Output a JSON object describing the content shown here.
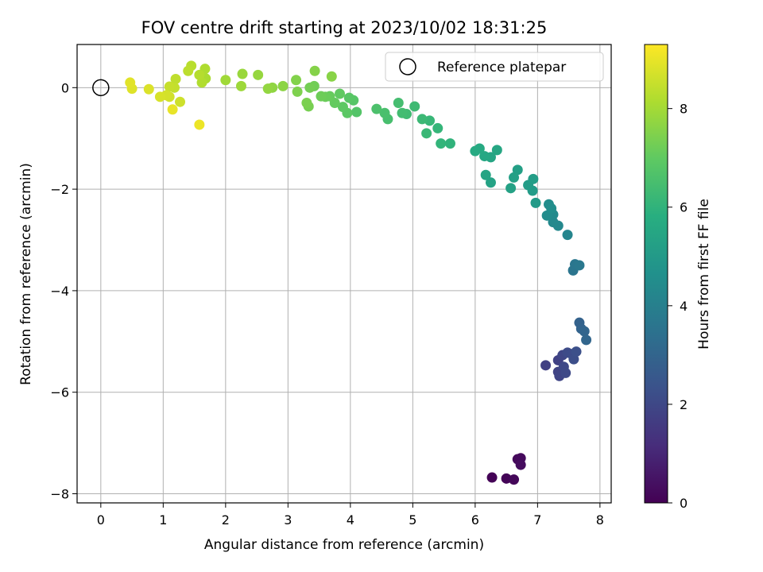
{
  "chart_data": {
    "type": "scatter",
    "title": "FOV centre drift starting at 2023/10/02 18:31:25",
    "xlabel": "Angular distance from reference (arcmin)",
    "ylabel": "Rotation from reference (arcmin)",
    "xlim": [
      -0.38,
      8.18
    ],
    "ylim": [
      -8.18,
      0.85
    ],
    "xticks": [
      0,
      1,
      2,
      3,
      4,
      5,
      6,
      7,
      8
    ],
    "xtick_labels": [
      "0",
      "1",
      "2",
      "3",
      "4",
      "5",
      "6",
      "7",
      "8"
    ],
    "yticks": [
      0,
      -2,
      -4,
      -6,
      -8
    ],
    "ytick_labels": [
      "0",
      "−2",
      "−4",
      "−6",
      "−8"
    ],
    "grid": true,
    "colormap": "viridis",
    "colorbar": {
      "label": "Hours from first FF file",
      "range": [
        0,
        9.3
      ],
      "ticks": [
        0,
        2,
        4,
        6,
        8
      ],
      "tick_labels": [
        "0",
        "2",
        "4",
        "6",
        "8"
      ]
    },
    "legend": {
      "location": "top-right",
      "entries": [
        "Reference platepar"
      ]
    },
    "reference_point": {
      "x": 0,
      "y": 0,
      "label": "Reference platepar"
    },
    "series": [
      {
        "points": [
          [
            6.27,
            -7.68,
            0.05
          ],
          [
            6.5,
            -7.7,
            0.1
          ],
          [
            6.62,
            -7.72,
            0.15
          ],
          [
            6.68,
            -7.32,
            0.2
          ],
          [
            6.73,
            -7.3,
            0.25
          ],
          [
            6.73,
            -7.43,
            0.3
          ],
          [
            7.13,
            -5.47,
            1.75
          ],
          [
            7.33,
            -5.37,
            1.8
          ],
          [
            7.33,
            -5.6,
            1.85
          ],
          [
            7.35,
            -5.68,
            1.9
          ],
          [
            7.4,
            -5.27,
            1.95
          ],
          [
            7.42,
            -5.5,
            2.0
          ],
          [
            7.45,
            -5.62,
            2.05
          ],
          [
            7.48,
            -5.22,
            2.1
          ],
          [
            7.55,
            -5.25,
            2.15
          ],
          [
            7.58,
            -5.35,
            2.2
          ],
          [
            7.62,
            -5.2,
            2.25
          ],
          [
            7.67,
            -4.63,
            2.9
          ],
          [
            7.7,
            -4.75,
            2.95
          ],
          [
            7.75,
            -4.8,
            3.0
          ],
          [
            7.78,
            -4.97,
            3.05
          ],
          [
            7.57,
            -3.6,
            3.6
          ],
          [
            7.6,
            -3.48,
            3.65
          ],
          [
            7.67,
            -3.5,
            3.7
          ],
          [
            7.48,
            -2.9,
            4.2
          ],
          [
            7.33,
            -2.72,
            4.3
          ],
          [
            7.25,
            -2.65,
            4.35
          ],
          [
            7.25,
            -2.5,
            4.4
          ],
          [
            7.15,
            -2.52,
            4.45
          ],
          [
            7.18,
            -2.3,
            4.5
          ],
          [
            7.22,
            -2.38,
            4.55
          ],
          [
            6.97,
            -2.27,
            5.0
          ],
          [
            6.92,
            -2.03,
            5.05
          ],
          [
            6.85,
            -1.92,
            5.1
          ],
          [
            6.93,
            -1.8,
            5.15
          ],
          [
            6.68,
            -1.62,
            5.2
          ],
          [
            6.62,
            -1.77,
            5.25
          ],
          [
            6.57,
            -1.98,
            5.3
          ],
          [
            6.25,
            -1.87,
            5.35
          ],
          [
            6.17,
            -1.72,
            5.4
          ],
          [
            6.25,
            -1.37,
            5.45
          ],
          [
            6.35,
            -1.23,
            5.5
          ],
          [
            6.15,
            -1.35,
            5.55
          ],
          [
            6.07,
            -1.2,
            5.6
          ],
          [
            6.0,
            -1.25,
            5.65
          ],
          [
            5.6,
            -1.1,
            6.0
          ],
          [
            5.45,
            -1.1,
            6.05
          ],
          [
            5.4,
            -0.8,
            6.1
          ],
          [
            5.27,
            -0.65,
            6.15
          ],
          [
            5.22,
            -0.9,
            6.2
          ],
          [
            5.15,
            -0.62,
            6.25
          ],
          [
            5.03,
            -0.37,
            6.3
          ],
          [
            4.9,
            -0.52,
            6.35
          ],
          [
            4.83,
            -0.5,
            6.4
          ],
          [
            4.77,
            -0.3,
            6.45
          ],
          [
            4.6,
            -0.62,
            6.5
          ],
          [
            4.55,
            -0.5,
            6.55
          ],
          [
            4.42,
            -0.42,
            6.6
          ],
          [
            4.1,
            -0.48,
            6.75
          ],
          [
            4.05,
            -0.25,
            6.8
          ],
          [
            3.98,
            -0.2,
            6.85
          ],
          [
            3.95,
            -0.5,
            6.9
          ],
          [
            3.88,
            -0.38,
            6.95
          ],
          [
            3.83,
            -0.12,
            7.0
          ],
          [
            3.75,
            -0.3,
            7.05
          ],
          [
            3.67,
            -0.17,
            7.1
          ],
          [
            3.6,
            -0.18,
            7.15
          ],
          [
            3.53,
            -0.17,
            7.2
          ],
          [
            3.42,
            0.03,
            7.25
          ],
          [
            3.35,
            0.0,
            7.3
          ],
          [
            3.33,
            -0.37,
            7.35
          ],
          [
            3.3,
            -0.3,
            7.4
          ],
          [
            3.15,
            -0.08,
            7.45
          ],
          [
            3.13,
            0.15,
            7.5
          ],
          [
            3.43,
            0.33,
            7.55
          ],
          [
            3.7,
            0.22,
            7.6
          ],
          [
            2.92,
            0.03,
            7.65
          ],
          [
            2.75,
            0.0,
            7.7
          ],
          [
            2.68,
            -0.02,
            7.75
          ],
          [
            2.52,
            0.25,
            7.8
          ],
          [
            2.27,
            0.27,
            7.85
          ],
          [
            2.25,
            0.03,
            7.9
          ],
          [
            2.0,
            0.15,
            7.95
          ],
          [
            1.68,
            0.18,
            8.1
          ],
          [
            1.67,
            0.37,
            8.15
          ],
          [
            1.62,
            0.1,
            8.2
          ],
          [
            1.58,
            0.25,
            8.25
          ],
          [
            1.45,
            0.43,
            8.3
          ],
          [
            1.4,
            0.33,
            8.35
          ],
          [
            1.2,
            0.17,
            8.4
          ],
          [
            1.18,
            0.0,
            8.45
          ],
          [
            1.1,
            0.02,
            8.5
          ],
          [
            1.27,
            -0.28,
            8.6
          ],
          [
            1.1,
            -0.18,
            8.65
          ],
          [
            1.05,
            -0.15,
            8.7
          ],
          [
            0.95,
            -0.18,
            8.75
          ],
          [
            0.77,
            -0.03,
            8.8
          ],
          [
            0.5,
            -0.02,
            8.85
          ],
          [
            0.47,
            0.1,
            8.9
          ],
          [
            1.15,
            -0.43,
            9.0
          ],
          [
            1.58,
            -0.73,
            9.05
          ]
        ]
      }
    ]
  }
}
